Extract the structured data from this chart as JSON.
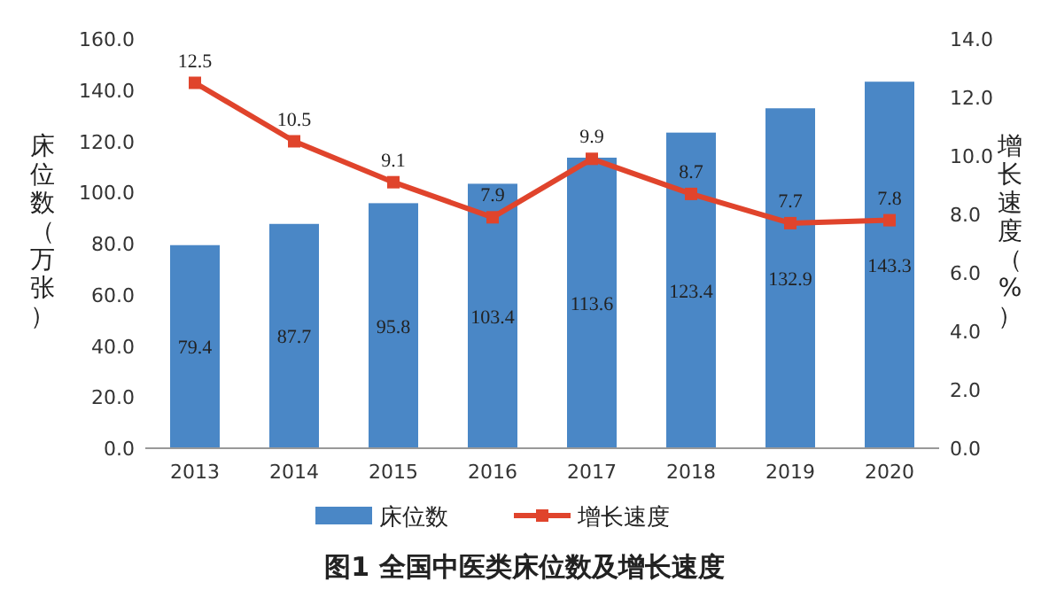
{
  "chart_data": {
    "type": "bar",
    "title": "图1 全国中医类床位数及增长速度",
    "ylabel": "床位数（万张）",
    "y2label": "增长速度（%）",
    "categories": [
      "2013",
      "2014",
      "2015",
      "2016",
      "2017",
      "2018",
      "2019",
      "2020"
    ],
    "series": [
      {
        "name": "床位数",
        "color": "#4a87c6",
        "values": [
          79.4,
          87.7,
          95.8,
          103.4,
          113.6,
          123.4,
          132.9,
          143.3
        ]
      },
      {
        "name": "增长速度",
        "type": "line",
        "axis": "y2",
        "color": "#e0442c",
        "marker": "square",
        "values": [
          12.5,
          10.5,
          9.1,
          7.9,
          9.9,
          8.7,
          7.7,
          7.8
        ]
      }
    ],
    "ylim": [
      0,
      160
    ],
    "yticks": [
      {
        "value": 0,
        "label": "0.0"
      },
      {
        "value": 20,
        "label": "20.0"
      },
      {
        "value": 40,
        "label": "40.0"
      },
      {
        "value": 60,
        "label": "60.0"
      },
      {
        "value": 80,
        "label": "80.0"
      },
      {
        "value": 100,
        "label": "100.0"
      },
      {
        "value": 120,
        "label": "120.0"
      },
      {
        "value": 140,
        "label": "140.0"
      },
      {
        "value": 160,
        "label": "160.0"
      }
    ],
    "y2lim": [
      0,
      14
    ],
    "y2ticks": [
      {
        "value": 0,
        "label": "0.0"
      },
      {
        "value": 2,
        "label": "2.0"
      },
      {
        "value": 4,
        "label": "4.0"
      },
      {
        "value": 6,
        "label": "6.0"
      },
      {
        "value": 8,
        "label": "8.0"
      },
      {
        "value": 10,
        "label": "10.0"
      },
      {
        "value": 12,
        "label": "12.0"
      },
      {
        "value": 14,
        "label": "14.0"
      }
    ],
    "data_labels": true,
    "legend": "bottom",
    "grid": false
  }
}
